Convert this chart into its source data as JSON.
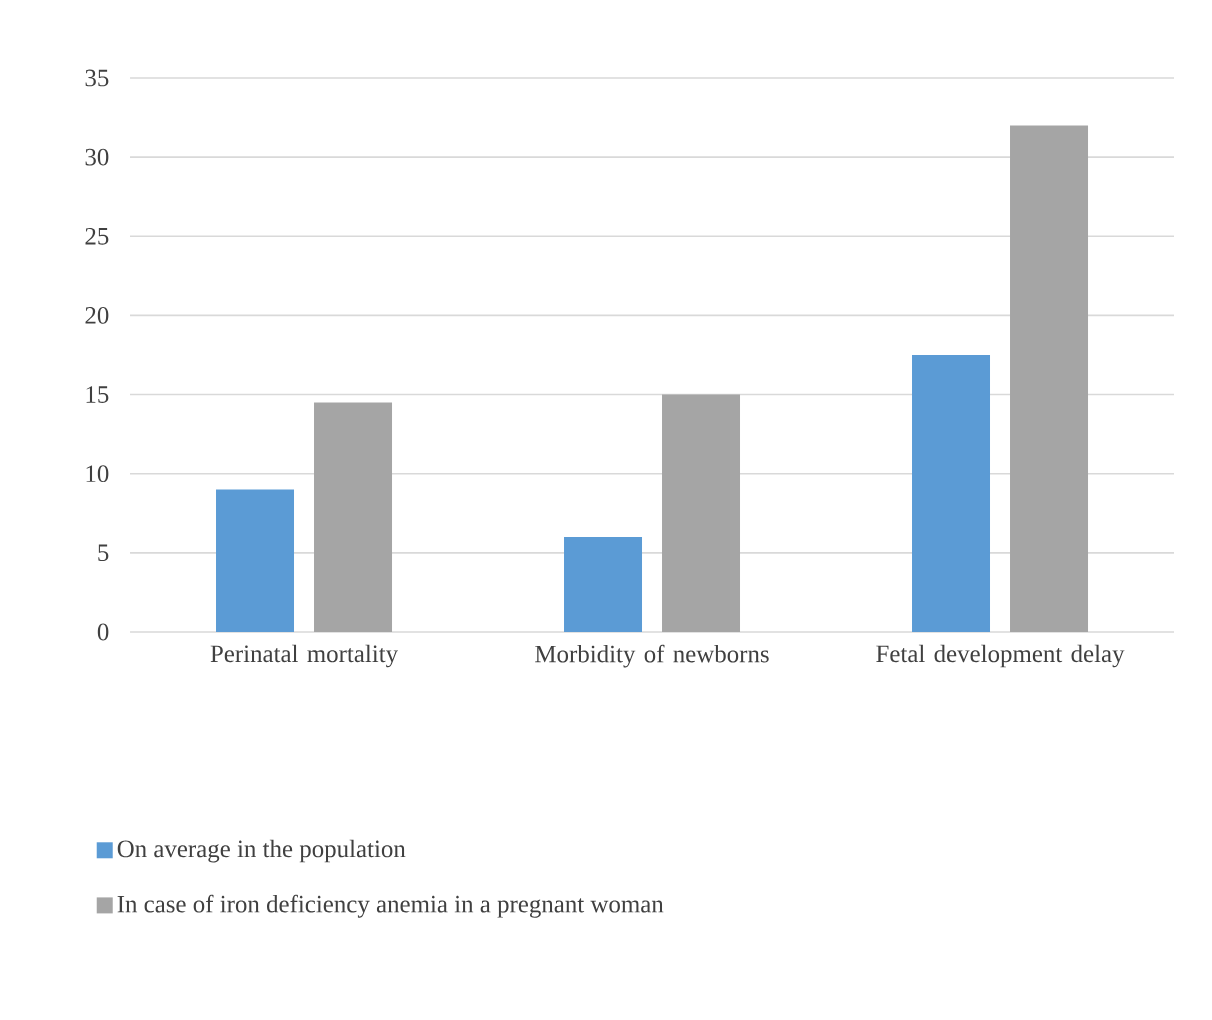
{
  "chart_data": {
    "type": "bar",
    "categories": [
      "Perinatal mortality",
      "Morbidity of newborns",
      "Fetal development delay"
    ],
    "series": [
      {
        "name": "On average in the population",
        "color": "#5b9bd5",
        "values": [
          9,
          6,
          17.5
        ]
      },
      {
        "name": "In case of iron deficiency anemia in a pregnant woman",
        "color": "#a5a5a5",
        "values": [
          14.5,
          15,
          32
        ]
      }
    ],
    "ylim": [
      0,
      35
    ],
    "yticks": [
      0,
      5,
      10,
      15,
      20,
      25,
      30,
      35
    ],
    "grid": "y",
    "legend": "bottom"
  }
}
